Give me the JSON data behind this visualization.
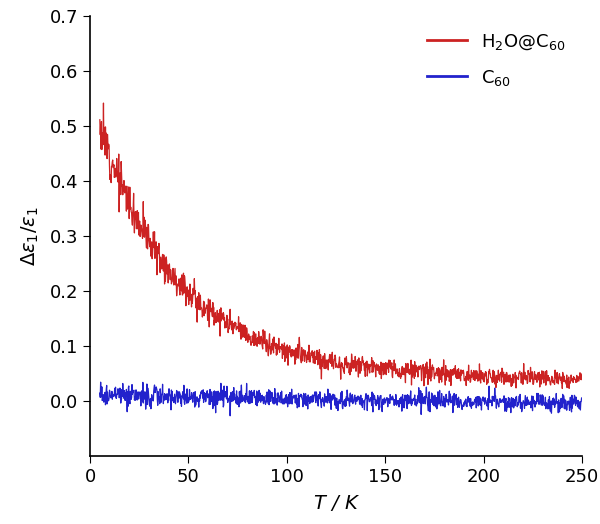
{
  "title": "",
  "xlabel": "T / K",
  "ylabel": "Δε₁/ε₁",
  "xlim": [
    0,
    250
  ],
  "ylim": [
    -0.1,
    0.7
  ],
  "yticks": [
    0.0,
    0.1,
    0.2,
    0.3,
    0.4,
    0.5,
    0.6,
    0.7
  ],
  "xticks": [
    0,
    50,
    100,
    150,
    200,
    250
  ],
  "red_color": "#cc2222",
  "blue_color": "#2222cc",
  "background_color": "#ffffff",
  "figsize": [
    6.0,
    5.24
  ],
  "dpi": 100
}
